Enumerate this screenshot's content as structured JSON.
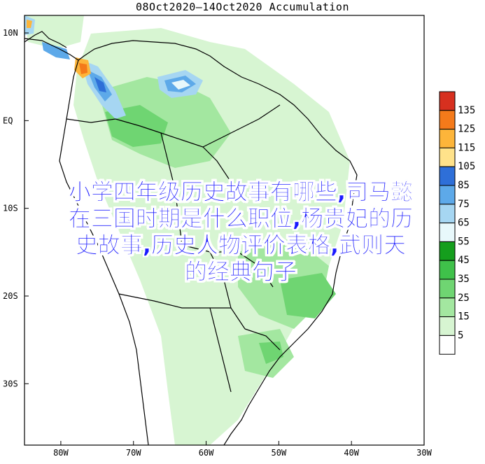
{
  "title": "08Oct2020—14Oct2020 Accumulation",
  "map": {
    "lat_labels": [
      "10N",
      "EQ",
      "10S",
      "20S",
      "30S"
    ],
    "lon_labels": [
      "80W",
      "70W",
      "60W",
      "50W",
      "40W",
      "30W"
    ],
    "lat_values": [
      10,
      0,
      -10,
      -20,
      -30
    ],
    "lon_values": [
      -80,
      -70,
      -60,
      -50,
      -40,
      -30
    ]
  },
  "legend": {
    "levels": [
      "135",
      "125",
      "115",
      "105",
      "85",
      "75",
      "65",
      "55",
      "45",
      "35",
      "25",
      "15",
      "5"
    ],
    "colors": [
      "#d7301f",
      "#f47a1a",
      "#fdb53a",
      "#ffe28a",
      "#2e6fd8",
      "#5da9e9",
      "#a6d6f2",
      "#e8f8fb",
      "#159e1d",
      "#3fc14a",
      "#6fd572",
      "#a3e7a0",
      "#d7f5d2",
      "#ffffff"
    ]
  },
  "overlay": {
    "lines": [
      "小学四年级历史故事有哪些,司马懿",
      "在三国时期是什么职位,杨贵妃的历",
      "史故事,历史人物评价表格,武则天",
      "的经典句子"
    ]
  }
}
